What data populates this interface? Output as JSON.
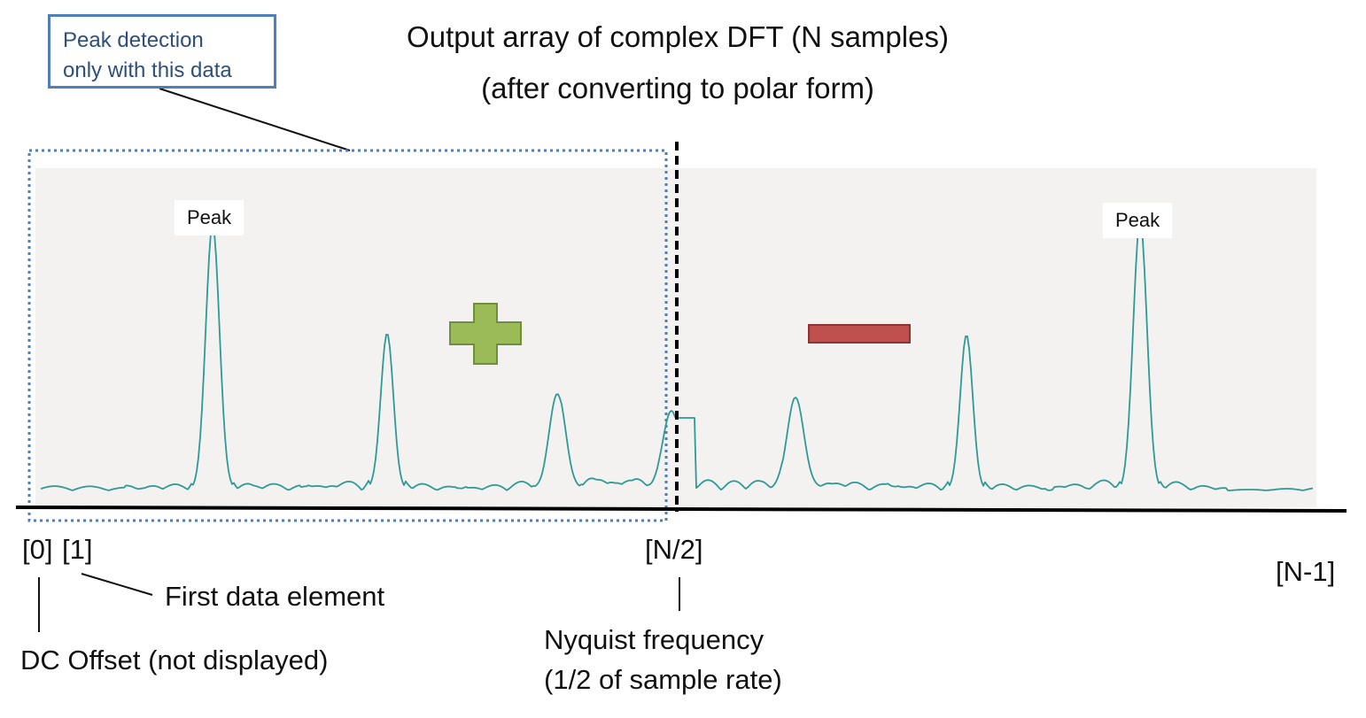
{
  "title": {
    "line1": "Output array of complex DFT (N samples)",
    "line2": "(after converting to polar form)"
  },
  "callout": {
    "line1": "Peak detection",
    "line2": "only with this data"
  },
  "peaks": {
    "left": "Peak",
    "right": "Peak"
  },
  "axis_labels": {
    "index_0": "[0]",
    "index_1": "[1]",
    "index_half": "[N/2]",
    "index_last": "[N-1]"
  },
  "annotations": {
    "first_element": "First data element",
    "dc_offset": "DC Offset (not displayed)",
    "nyquist_line1": "Nyquist frequency",
    "nyquist_line2": "(1/2 of sample rate)"
  },
  "colors": {
    "plot_bg": "#f3f2f0",
    "signal": "#2e9a95",
    "plus_sign": "#9bbb59",
    "minus_sign": "#c0504d",
    "callout_border": "#4e7fb8"
  },
  "symbols": {
    "positive": "plus-icon",
    "negative": "minus-icon"
  }
}
